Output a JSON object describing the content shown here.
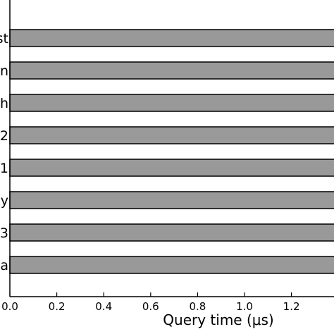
{
  "chart_data": {
    "type": "bar",
    "orientation": "horizontal",
    "categories": [
      "st",
      "n",
      "h",
      "2",
      "1",
      "y",
      "3",
      "a"
    ],
    "values": [
      1.4,
      1.4,
      1.4,
      1.4,
      1.4,
      1.4,
      1.4,
      1.4
    ],
    "xlabel": "Query time (μs)",
    "xlim": [
      0.0,
      1.4
    ],
    "xticks": [
      "0.0",
      "0.2",
      "0.4",
      "0.6",
      "0.8",
      "1.0",
      "1.2"
    ],
    "bar_color": "#999999",
    "grid": false
  }
}
